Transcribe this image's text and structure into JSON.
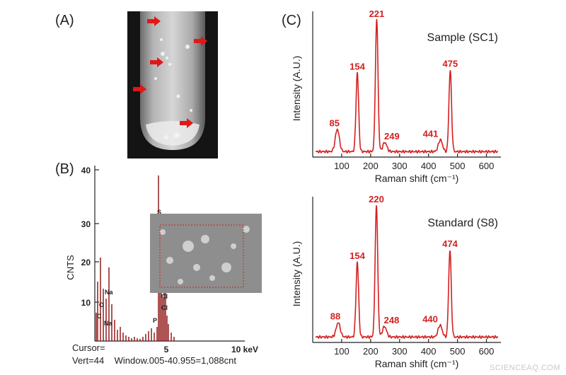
{
  "panels": {
    "a_label": "(A)",
    "b_label": "(B)",
    "c_label": "(C)"
  },
  "colors": {
    "raman": "#d42020",
    "eds_bar": "#8b0a0a",
    "arrow": "#e01818"
  },
  "photo": {
    "arrow_icon": "red-arrow-icon",
    "arrow_count": 5
  },
  "eds": {
    "ylabel": "CNTS",
    "yticks": [
      "40",
      "30",
      "20",
      "10"
    ],
    "xticks": [
      "5",
      "10 keV"
    ],
    "peak_labels": [
      "S",
      "S",
      "Cl",
      "Cl",
      "Na",
      "O",
      "C",
      "Na",
      "P"
    ],
    "cursor_line": "Cursor=",
    "status_line": "Vert=44    Window.005-40.955=1,088cnt"
  },
  "chart_data": [
    {
      "type": "line",
      "title": "Sample (SC1)",
      "xlabel": "Raman shift (cm⁻¹)",
      "ylabel": "Intensity (A.U.)",
      "xlim": [
        0,
        650
      ],
      "xticks": [
        "100",
        "200",
        "300",
        "400",
        "500",
        "600"
      ],
      "peaks": [
        {
          "label": "85",
          "x": 85,
          "y": 0.17
        },
        {
          "label": "154",
          "x": 154,
          "y": 0.6
        },
        {
          "label": "221",
          "x": 221,
          "y": 1.0
        },
        {
          "label": "249",
          "x": 249,
          "y": 0.07
        },
        {
          "label": "441",
          "x": 441,
          "y": 0.09
        },
        {
          "label": "475",
          "x": 475,
          "y": 0.62
        }
      ]
    },
    {
      "type": "line",
      "title": "Standard (S8)",
      "xlabel": "Raman shift (cm⁻¹)",
      "ylabel": "Intensity (A.U.)",
      "xlim": [
        0,
        650
      ],
      "xticks": [
        "100",
        "200",
        "300",
        "400",
        "500",
        "600"
      ],
      "peaks": [
        {
          "label": "88",
          "x": 88,
          "y": 0.11
        },
        {
          "label": "154",
          "x": 154,
          "y": 0.57
        },
        {
          "label": "220",
          "x": 220,
          "y": 1.0
        },
        {
          "label": "248",
          "x": 248,
          "y": 0.08
        },
        {
          "label": "440",
          "x": 440,
          "y": 0.09
        },
        {
          "label": "474",
          "x": 474,
          "y": 0.66
        }
      ]
    }
  ],
  "watermark": "SCIENCEAQ.COM"
}
